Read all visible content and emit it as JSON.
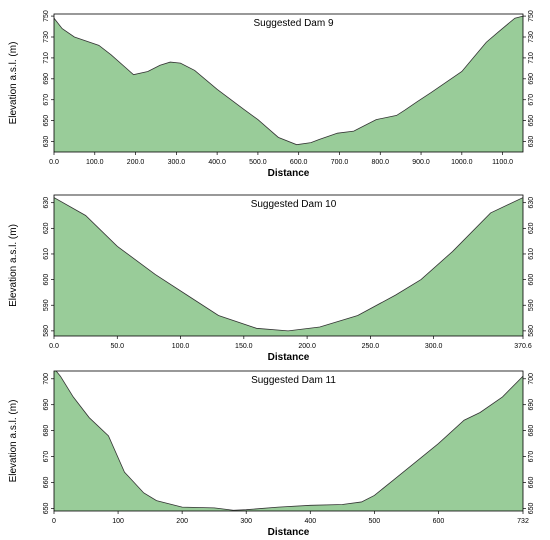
{
  "chart_data": [
    {
      "type": "area",
      "title": "Suggested Dam 9",
      "xlabel": "Distance",
      "ylabel": "Elevation a.s.l. (m)",
      "xlim": [
        0,
        1150
      ],
      "ylim": [
        620,
        752
      ],
      "xticks": [
        0,
        100,
        200,
        300,
        400,
        500,
        600,
        700,
        800,
        900,
        1000,
        1100
      ],
      "xtick_labels": [
        "0.0",
        "100.0",
        "200.0",
        "300.0",
        "400.0",
        "500.0",
        "600.0",
        "700.0",
        "800.0",
        "900.0",
        "1000.0",
        "1100.0"
      ],
      "yticks": [
        630,
        650,
        670,
        690,
        710,
        730,
        750
      ],
      "ytick_labels": [
        "630",
        "650",
        "670",
        "690",
        "710",
        "730",
        "750"
      ],
      "fill_color": "#99cc99",
      "line_color": "#333333",
      "x": [
        0,
        20,
        50,
        110,
        140,
        195,
        230,
        260,
        285,
        310,
        345,
        400,
        465,
        500,
        550,
        595,
        630,
        650,
        695,
        735,
        790,
        840,
        860,
        890,
        925,
        1000,
        1030,
        1060,
        1090,
        1130,
        1150
      ],
      "y": [
        748,
        738,
        730,
        722,
        713,
        694,
        697,
        703,
        706,
        705,
        698,
        680,
        661,
        651,
        634,
        627,
        629,
        632,
        638,
        640,
        651,
        655,
        660,
        668,
        677,
        697,
        711,
        725,
        735,
        748,
        750
      ]
    },
    {
      "type": "area",
      "title": "Suggested Dam 10",
      "xlabel": "Distance",
      "ylabel": "Elevation a.s.l. (m)",
      "xlim": [
        0,
        370.6
      ],
      "ylim": [
        578,
        633
      ],
      "xticks": [
        0,
        50,
        100,
        150,
        200,
        250,
        300,
        370.6
      ],
      "xtick_labels": [
        "0.0",
        "50.0",
        "100.0",
        "150.0",
        "200.0",
        "250.0",
        "300.0",
        "370.6"
      ],
      "yticks": [
        580,
        590,
        600,
        610,
        620,
        630
      ],
      "ytick_labels": [
        "580",
        "590",
        "600",
        "610",
        "620",
        "630"
      ],
      "fill_color": "#99cc99",
      "line_color": "#333333",
      "x": [
        0,
        25,
        50,
        80,
        105,
        130,
        160,
        185,
        210,
        240,
        270,
        290,
        315,
        345,
        370.6
      ],
      "y": [
        632,
        625,
        613,
        602,
        594,
        586,
        581,
        580,
        581.5,
        586,
        594,
        600,
        611,
        626,
        632
      ]
    },
    {
      "type": "area",
      "title": "Suggested Dam 11",
      "xlabel": "Distance",
      "ylabel": "Elevation a.s.l. (m)",
      "xlim": [
        0,
        732
      ],
      "ylim": [
        649,
        703
      ],
      "xticks": [
        0,
        100,
        200,
        300,
        400,
        500,
        600,
        732
      ],
      "xtick_labels": [
        "0",
        "100",
        "200",
        "300",
        "400",
        "500",
        "600",
        "732"
      ],
      "yticks": [
        650,
        660,
        670,
        680,
        690,
        700
      ],
      "ytick_labels": [
        "650",
        "660",
        "670",
        "680",
        "690",
        "700"
      ],
      "fill_color": "#99cc99",
      "line_color": "#333333",
      "x": [
        0,
        10,
        30,
        55,
        85,
        110,
        140,
        160,
        200,
        250,
        280,
        300,
        350,
        400,
        450,
        480,
        500,
        530,
        570,
        600,
        640,
        665,
        700,
        732
      ],
      "y": [
        704,
        701,
        693,
        685,
        678,
        664,
        656,
        653,
        650.5,
        650.2,
        649.3,
        649.5,
        650.5,
        651.2,
        651.5,
        652.5,
        655,
        661,
        669,
        675,
        684,
        687,
        693,
        701
      ]
    }
  ]
}
